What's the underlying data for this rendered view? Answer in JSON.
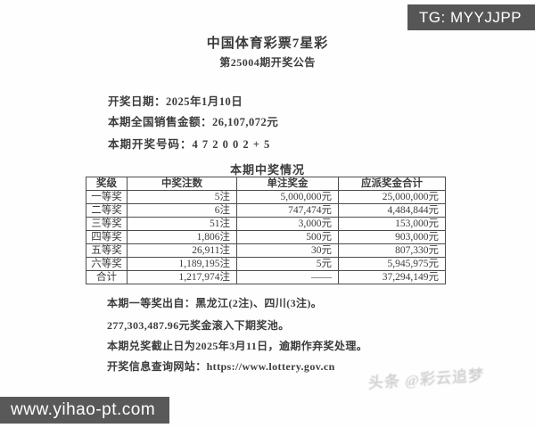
{
  "overlays": {
    "tg_badge": "TG: MYYJJPP",
    "site_badge": "www.yihao-pt.com",
    "watermark": "头条 @彩云追梦"
  },
  "doc": {
    "title": "中国体育彩票7星彩",
    "subtitle": "第25004期开奖公告",
    "info_lines": [
      {
        "label": "开奖日期：",
        "value": "2025年1月10日"
      },
      {
        "label": "本期全国销售金额：",
        "value": "26,107,072元"
      },
      {
        "label": "本期开奖号码：",
        "value": "4 7 2 0 0 2 + 5"
      }
    ],
    "table": {
      "title": "本期中奖情况",
      "headers": [
        "奖级",
        "中奖注数",
        "单注奖金",
        "应派奖金合计"
      ],
      "rows": [
        [
          "一等奖",
          "5注",
          "5,000,000元",
          "25,000,000元"
        ],
        [
          "二等奖",
          "6注",
          "747,474元",
          "4,484,844元"
        ],
        [
          "三等奖",
          "51注",
          "3,000元",
          "153,000元"
        ],
        [
          "四等奖",
          "1,806注",
          "500元",
          "903,000元"
        ],
        [
          "五等奖",
          "26,911注",
          "30元",
          "807,330元"
        ],
        [
          "六等奖",
          "1,189,195注",
          "5元",
          "5,945,975元"
        ],
        [
          "合计",
          "1,217,974注",
          "——",
          "37,294,149元"
        ]
      ]
    },
    "notes": [
      "本期一等奖出自：黑龙江(2注)、四川(3注)。",
      "277,303,487.96元奖金滚入下期奖池。",
      "本期兑奖截止日为2025年3月11日，逾期作弃奖处理。",
      "开奖信息查询网站：https://www.lottery.gov.cn"
    ]
  },
  "colors": {
    "badge_bg": "#565656",
    "text": "#3c3c3c",
    "table_border": "#4c4c4c",
    "watermark": "#c3c3c3"
  }
}
